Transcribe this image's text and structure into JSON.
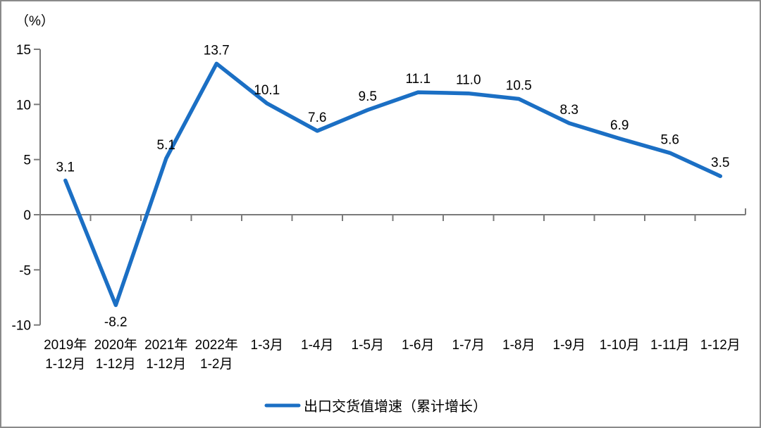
{
  "chart_data": {
    "type": "line",
    "ylabel": "（%）",
    "xlabel": "",
    "categories": [
      "2019年\n1-12月",
      "2020年\n1-12月",
      "2021年\n1-12月",
      "2022年\n1-2月",
      "1-3月",
      "1-4月",
      "1-5月",
      "1-6月",
      "1-7月",
      "1-8月",
      "1-9月",
      "1-10月",
      "1-11月",
      "1-12月"
    ],
    "series": [
      {
        "name": "出口交货值增速（累计增长）",
        "values": [
          3.1,
          -8.2,
          5.1,
          13.7,
          10.1,
          7.6,
          9.5,
          11.1,
          11.0,
          10.5,
          8.3,
          6.9,
          5.6,
          3.5
        ]
      }
    ],
    "data_labels": [
      "3.1",
      "-8.2",
      "5.1",
      "13.7",
      "10.1",
      "7.6",
      "9.5",
      "11.1",
      "11.0",
      "10.5",
      "8.3",
      "6.9",
      "5.6",
      "3.5"
    ],
    "y_ticks": [
      15,
      10,
      5,
      0,
      -5,
      -10
    ],
    "ylim": [
      -10,
      15
    ],
    "grid": false,
    "zero_axis_line": true,
    "legend_position": "bottom",
    "colors": {
      "line": "#1b6fc4",
      "axis": "#7a7a7a",
      "text": "#000000",
      "border": "#8a8a8a"
    }
  }
}
